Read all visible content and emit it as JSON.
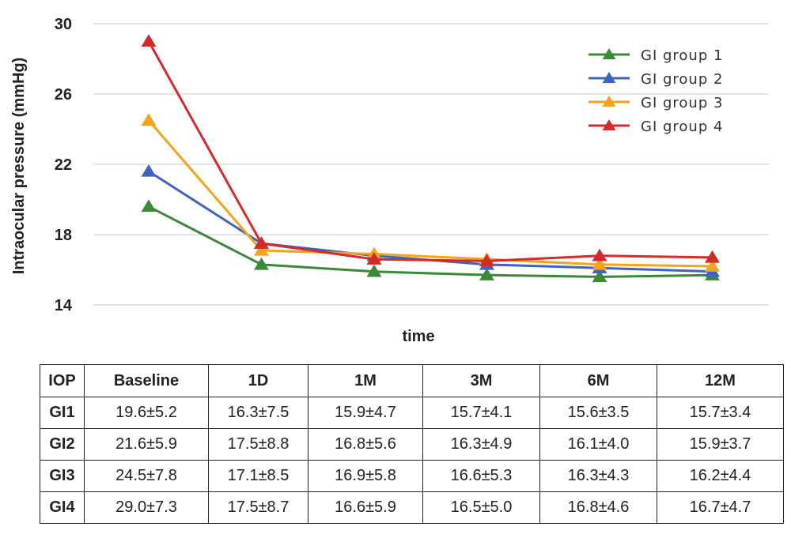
{
  "chart_data": {
    "type": "line",
    "title": "",
    "xlabel": "time",
    "ylabel": "Intraocular pressure (mmHg)",
    "categories": [
      "Baseline",
      "1D",
      "1M",
      "3M",
      "6M",
      "12M"
    ],
    "ylim": [
      14,
      30
    ],
    "yticks": [
      14,
      18,
      22,
      26,
      30
    ],
    "grid": true,
    "legend_position": "top-right",
    "series": [
      {
        "name": "GI group 1",
        "color": "#3a8a35",
        "values": [
          19.6,
          16.3,
          15.9,
          15.7,
          15.6,
          15.7
        ]
      },
      {
        "name": "GI group 2",
        "color": "#3c64c0",
        "values": [
          21.6,
          17.5,
          16.8,
          16.3,
          16.1,
          15.9
        ]
      },
      {
        "name": "GI group 3",
        "color": "#f5a31a",
        "values": [
          24.5,
          17.1,
          16.9,
          16.6,
          16.3,
          16.2
        ]
      },
      {
        "name": "GI group 4",
        "color": "#d42a2a",
        "values": [
          29.0,
          17.5,
          16.6,
          16.5,
          16.8,
          16.7
        ]
      }
    ]
  },
  "table": {
    "header": [
      "IOP",
      "Baseline",
      "1D",
      "1M",
      "3M",
      "6M",
      "12M"
    ],
    "rows": [
      [
        "GI1",
        "19.6±5.2",
        "16.3±7.5",
        "15.9±4.7",
        "15.7±4.1",
        "15.6±3.5",
        "15.7±3.4"
      ],
      [
        "GI2",
        "21.6±5.9",
        "17.5±8.8",
        "16.8±5.6",
        "16.3±4.9",
        "16.1±4.0",
        "15.9±3.7"
      ],
      [
        "GI3",
        "24.5±7.8",
        "17.1±8.5",
        "16.9±5.8",
        "16.6±5.3",
        "16.3±4.3",
        "16.2±4.4"
      ],
      [
        "GI4",
        "29.0±7.3",
        "17.5±8.7",
        "16.6±5.9",
        "16.5±5.0",
        "16.8±4.6",
        "16.7±4.7"
      ]
    ]
  }
}
